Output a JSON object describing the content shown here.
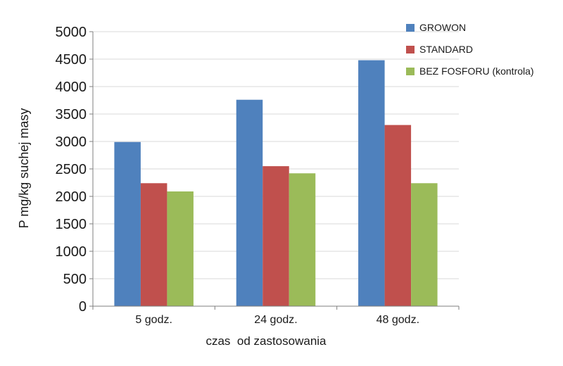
{
  "chart_data": {
    "type": "bar",
    "title": "",
    "xlabel": "czas  od zastosowania",
    "ylabel": "P mg/kg suchej masy",
    "ylim": [
      0,
      5000
    ],
    "yticks": [
      0,
      500,
      1000,
      1500,
      2000,
      2500,
      3000,
      3500,
      4000,
      4500,
      5000
    ],
    "grid": true,
    "legend_position": "top-right",
    "categories": [
      "5 godz.",
      "24 godz.",
      "48 godz."
    ],
    "series": [
      {
        "name": "GROWON",
        "color": "#4f81bd",
        "values": [
          2990,
          3760,
          4480
        ]
      },
      {
        "name": "STANDARD",
        "color": "#c0504d",
        "values": [
          2240,
          2550,
          3300
        ]
      },
      {
        "name": "BEZ FOSFORU (kontrola)",
        "color": "#9bbb59",
        "values": [
          2090,
          2420,
          2240
        ]
      }
    ]
  }
}
